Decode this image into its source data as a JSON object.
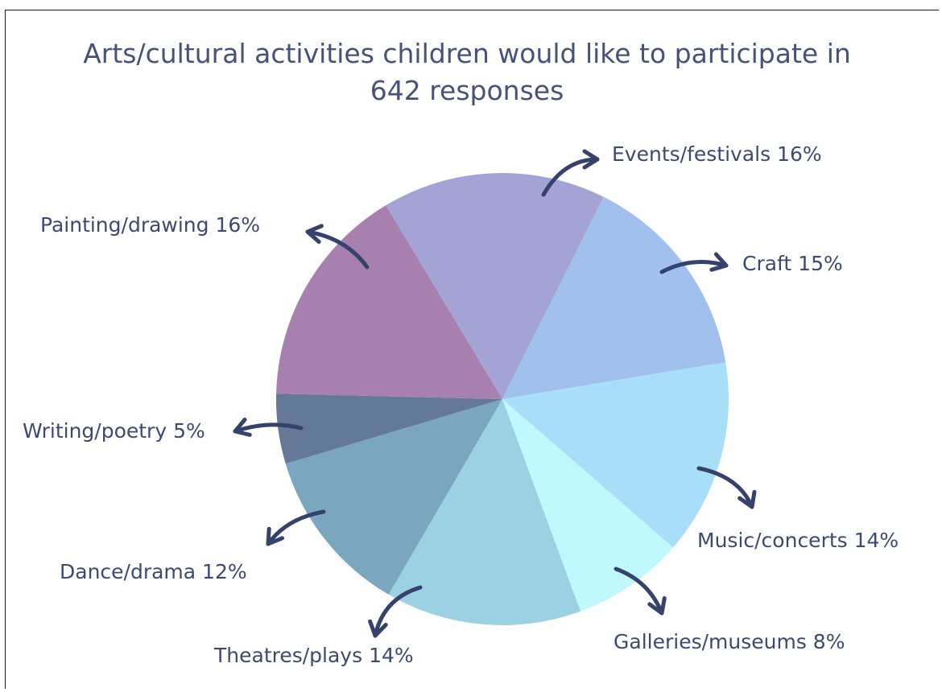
{
  "chart_data": {
    "type": "pie",
    "title": "Arts/cultural activities children would like to participate in",
    "subtitle": "642 responses",
    "slices": [
      {
        "label": "Events/festivals 16%",
        "value": 16,
        "color": "#a3a3d5"
      },
      {
        "label": "Craft 15%",
        "value": 15,
        "color": "#a0c1ed"
      },
      {
        "label": "Music/concerts 14%",
        "value": 14,
        "color": "#a8def7"
      },
      {
        "label": "Galleries/museums 8%",
        "value": 8,
        "color": "#bff9fd"
      },
      {
        "label": "Theatres/plays 14%",
        "value": 14,
        "color": "#9bd1e2"
      },
      {
        "label": "Dance/drama 12%",
        "value": 12,
        "color": "#7aa6c0"
      },
      {
        "label": "Writing/poetry 5%",
        "value": 5,
        "color": "#637997"
      },
      {
        "label": "Painting/drawing 16%",
        "value": 16,
        "color": "#a780af"
      }
    ],
    "arrow_color": "#34426c",
    "legend": "none"
  }
}
